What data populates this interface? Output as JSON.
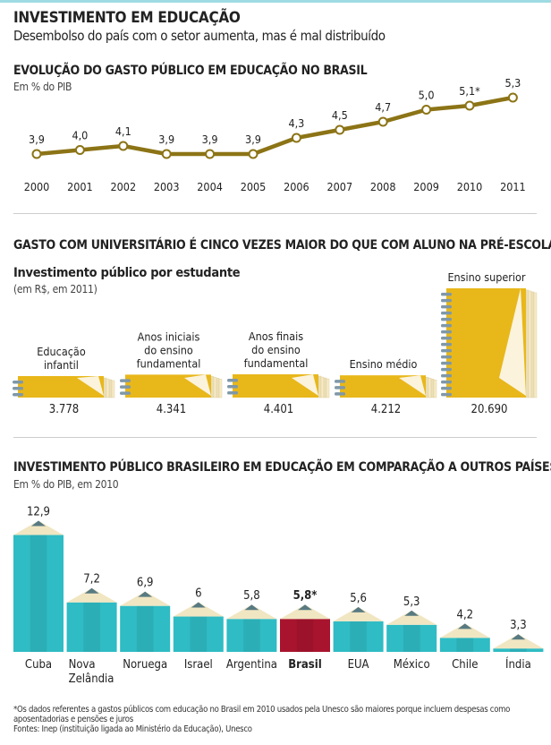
{
  "header": {
    "title": "INVESTIMENTO EM EDUCAÇÃO",
    "subtitle": "Desembolso do país com o setor aumenta, mas é mal distribuído"
  },
  "colors": {
    "line": "#8c7416",
    "notebook": "#e8b71a",
    "pencil": "#2fbcc4",
    "brasil": "#a8142e",
    "pencil_tip": "#f1e6c2",
    "lead": "#587a82"
  },
  "chart_data": [
    {
      "type": "line",
      "title": "EVOLUÇÃO DO GASTO PÚBLICO EM EDUCAÇÃO NO BRASIL",
      "ylabel": "Em % do PIB",
      "categories": [
        "2000",
        "2001",
        "2002",
        "2003",
        "2004",
        "2005",
        "2006",
        "2007",
        "2008",
        "2009",
        "2010",
        "2011"
      ],
      "values": [
        3.9,
        4.0,
        4.1,
        3.9,
        3.9,
        3.9,
        4.3,
        4.5,
        4.7,
        5.0,
        5.1,
        5.3
      ],
      "labels": [
        "3,9",
        "4,0",
        "4,1",
        "3,9",
        "3,9",
        "3,9",
        "4,3",
        "4,5",
        "4,7",
        "5,0",
        "5,1*",
        "5,3"
      ]
    },
    {
      "type": "bar",
      "headline": "GASTO COM UNIVERSITÁRIO É CINCO VEZES MAIOR DO QUE COM ALUNO NA PRÉ-ESCOLA",
      "title": "Investimento público por estudante",
      "ylabel": "(em R$, em 2011)",
      "categories": [
        [
          "Educação",
          "infantil"
        ],
        [
          "Anos iniciais",
          "do ensino",
          "fundamental"
        ],
        [
          "Anos finais",
          "do ensino",
          "fundamental"
        ],
        [
          "Ensino médio"
        ],
        [
          "Ensino superior"
        ]
      ],
      "values": [
        3778,
        4341,
        4401,
        4212,
        20690
      ],
      "labels": [
        "3.778",
        "4.341",
        "4.401",
        "4.212",
        "20.690"
      ]
    },
    {
      "type": "bar",
      "title": "INVESTIMENTO PÚBLICO BRASILEIRO EM EDUCAÇÃO EM COMPARAÇÃO A OUTROS PAÍSES",
      "ylabel": "Em % do PIB, em 2010",
      "categories": [
        [
          "Cuba"
        ],
        [
          "Nova",
          "Zelândia"
        ],
        [
          "Noruega"
        ],
        [
          "Israel"
        ],
        [
          "Argentina"
        ],
        [
          "Brasil"
        ],
        [
          "EUA"
        ],
        [
          "México"
        ],
        [
          "Chile"
        ],
        [
          "Índia"
        ]
      ],
      "values": [
        12.9,
        7.2,
        6.9,
        6,
        5.8,
        5.8,
        5.6,
        5.3,
        4.2,
        3.3
      ],
      "labels": [
        "12,9",
        "7,2",
        "6,9",
        "6",
        "5,8",
        "5,8*",
        "5,6",
        "5,3",
        "4,2",
        "3,3"
      ],
      "highlight": "Brasil"
    }
  ],
  "footnotes": [
    "*Os dados referentes a gastos públicos com educação no Brasil em 2010 usados pela Unesco são maiores porque incluem despesas como",
    "aposentadorias e pensões e juros",
    "Fontes: Inep (instituição ligada ao Ministério da Educação), Unesco"
  ]
}
